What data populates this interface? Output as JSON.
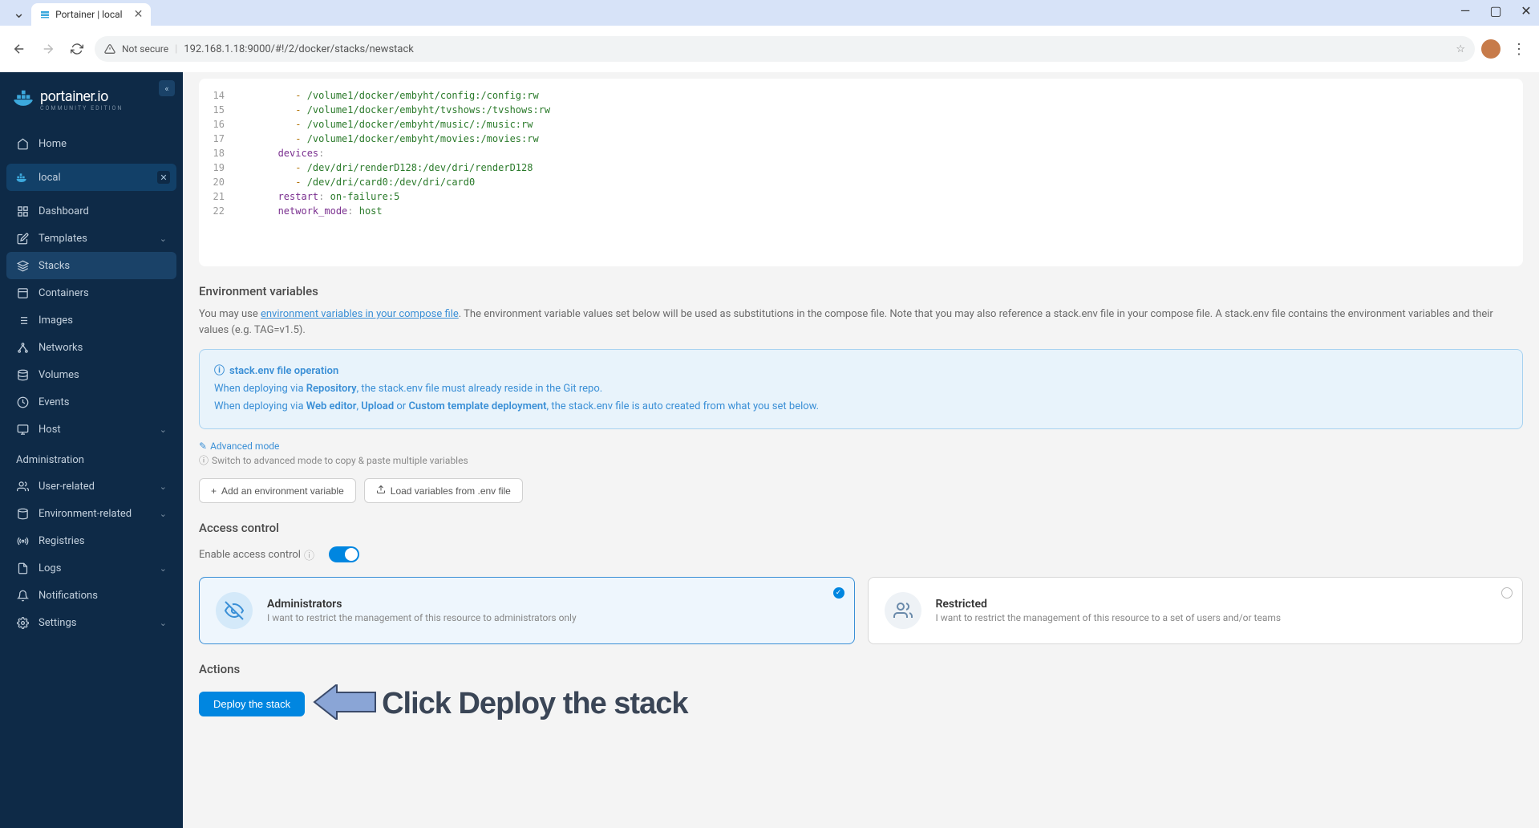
{
  "browser": {
    "tab_title": "Portainer | local",
    "security_label": "Not secure",
    "url": "192.168.1.18:9000/#!/2/docker/stacks/newstack"
  },
  "logo": {
    "main": "portainer.io",
    "sub": "COMMUNITY EDITION"
  },
  "nav": {
    "home": "Home",
    "env": "local",
    "dashboard": "Dashboard",
    "templates": "Templates",
    "stacks": "Stacks",
    "containers": "Containers",
    "images": "Images",
    "networks": "Networks",
    "volumes": "Volumes",
    "events": "Events",
    "host": "Host",
    "admin_section": "Administration",
    "user_related": "User-related",
    "env_related": "Environment-related",
    "registries": "Registries",
    "logs": "Logs",
    "notifications": "Notifications",
    "settings": "Settings"
  },
  "code": {
    "lines": [
      {
        "n": "14",
        "indent": "          ",
        "dash": "- ",
        "val": "/volume1/docker/embyht/config:/config:rw"
      },
      {
        "n": "15",
        "indent": "          ",
        "dash": "- ",
        "val": "/volume1/docker/embyht/tvshows:/tvshows:rw"
      },
      {
        "n": "16",
        "indent": "          ",
        "dash": "- ",
        "val": "/volume1/docker/embyht/music/:/music:rw"
      },
      {
        "n": "17",
        "indent": "          ",
        "dash": "- ",
        "val": "/volume1/docker/embyht/movies:/movies:rw"
      },
      {
        "n": "18",
        "indent": "       ",
        "key": "devices",
        "colon": ":"
      },
      {
        "n": "19",
        "indent": "          ",
        "dash": "- ",
        "val": "/dev/dri/renderD128:/dev/dri/renderD128"
      },
      {
        "n": "20",
        "indent": "          ",
        "dash": "- ",
        "val": "/dev/dri/card0:/dev/dri/card0"
      },
      {
        "n": "21",
        "indent": "       ",
        "key": "restart",
        "colon": ": ",
        "val": "on-failure:5"
      },
      {
        "n": "22",
        "indent": "       ",
        "key": "network_mode",
        "colon": ": ",
        "val": "host"
      }
    ]
  },
  "env_section": {
    "title": "Environment variables",
    "desc_pre": "You may use ",
    "desc_link": "environment variables in your compose file",
    "desc_post": ". The environment variable values set below will be used as substitutions in the compose file. Note that you may also reference a stack.env file in your compose file. A stack.env file contains the environment variables and their values (e.g. TAG=v1.5).",
    "info_title": "stack.env file operation",
    "info_line1_pre": "When deploying via ",
    "info_line1_b1": "Repository",
    "info_line1_post": ", the stack.env file must already reside in the Git repo.",
    "info_line2_pre": "When deploying via ",
    "info_line2_b1": "Web editor",
    "info_line2_mid1": ", ",
    "info_line2_b2": "Upload",
    "info_line2_mid2": " or ",
    "info_line2_b3": "Custom template deployment",
    "info_line2_post": ", the stack.env file is auto created from what you set below.",
    "adv_link": "Advanced mode",
    "adv_hint": "Switch to advanced mode to copy & paste multiple variables",
    "btn_add": "Add an environment variable",
    "btn_load": "Load variables from .env file"
  },
  "access": {
    "title": "Access control",
    "toggle_label": "Enable access control",
    "admin_title": "Administrators",
    "admin_desc": "I want to restrict the management of this resource to administrators only",
    "restricted_title": "Restricted",
    "restricted_desc": "I want to restrict the management of this resource to a set of users and/or teams"
  },
  "actions": {
    "title": "Actions",
    "deploy_btn": "Deploy the stack",
    "annotation": "Click Deploy the stack"
  },
  "colors": {
    "sidebar_bg": "#0e2a47",
    "accent": "#0086e0",
    "link": "#3a8fd6"
  }
}
